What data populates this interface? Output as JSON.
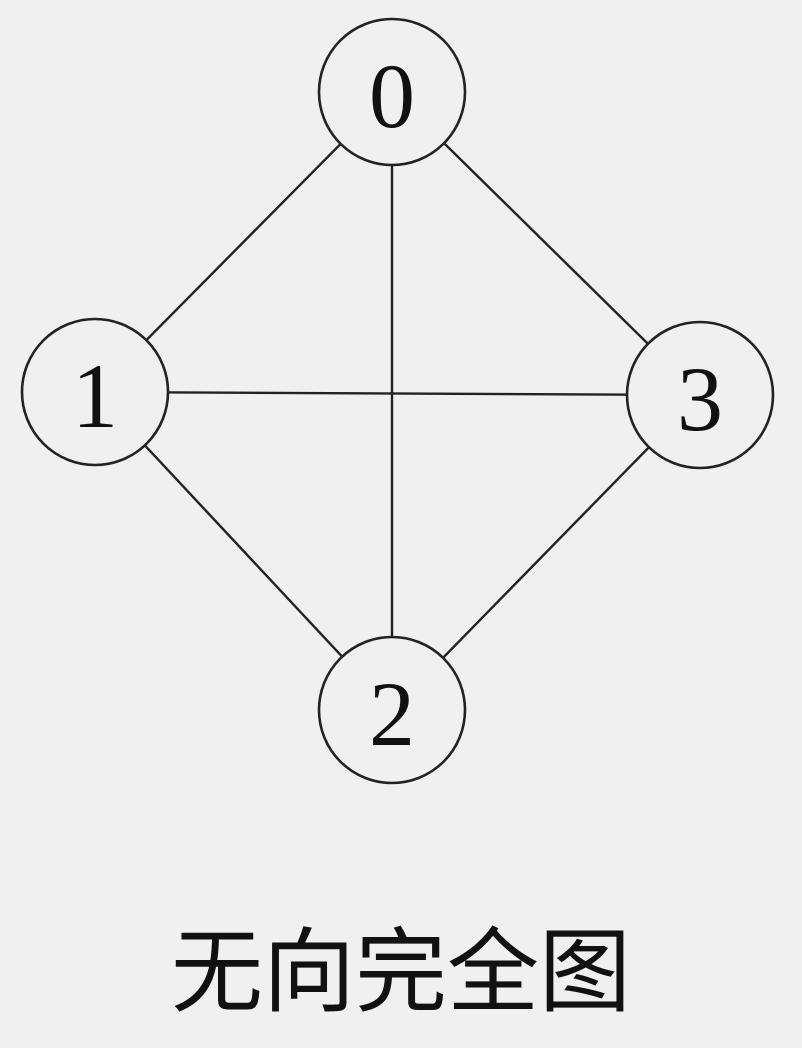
{
  "graph": {
    "nodes": [
      {
        "id": "0",
        "label": "0"
      },
      {
        "id": "1",
        "label": "1"
      },
      {
        "id": "2",
        "label": "2"
      },
      {
        "id": "3",
        "label": "3"
      }
    ],
    "edges": [
      [
        "0",
        "1"
      ],
      [
        "0",
        "2"
      ],
      [
        "0",
        "3"
      ],
      [
        "1",
        "2"
      ],
      [
        "1",
        "3"
      ],
      [
        "2",
        "3"
      ]
    ]
  },
  "caption": "无向完全图",
  "colors": {
    "background": "#f0f0f0",
    "stroke": "#222222"
  }
}
